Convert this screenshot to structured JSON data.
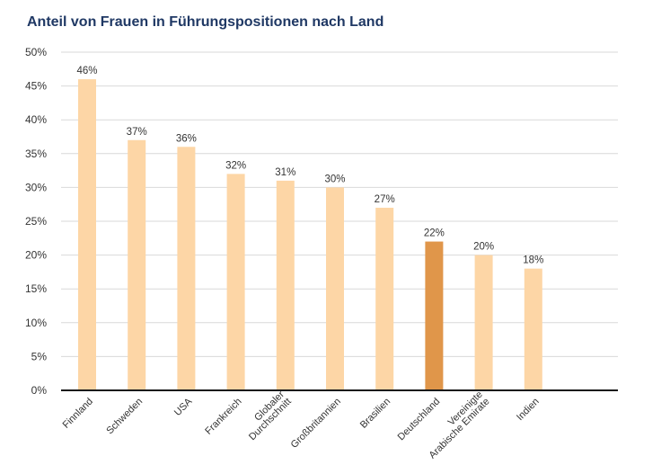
{
  "chart_data": {
    "type": "bar",
    "title": "Anteil von Frauen in Führungspositionen nach Land",
    "categories": [
      [
        "Finnland"
      ],
      [
        "Schweden"
      ],
      [
        "USA"
      ],
      [
        "Frankreich"
      ],
      [
        "Globaler",
        "Durchschnitt"
      ],
      [
        "Großbritannien"
      ],
      [
        "Brasilien"
      ],
      [
        "Deutschland"
      ],
      [
        "Vereinigte",
        "Arabische Emirate"
      ],
      [
        "Indien"
      ]
    ],
    "values": [
      46,
      37,
      36,
      32,
      31,
      30,
      27,
      22,
      20,
      18
    ],
    "data_labels": [
      "46%",
      "37%",
      "36%",
      "32%",
      "31%",
      "30%",
      "27%",
      "22%",
      "20%",
      "18%"
    ],
    "y_ticks": [
      "0%",
      "5%",
      "10%",
      "15%",
      "20%",
      "25%",
      "30%",
      "35%",
      "40%",
      "45%",
      "50%"
    ],
    "ylim": [
      0,
      50
    ],
    "xlabel": "",
    "ylabel": "",
    "grid": true,
    "highlight_index": 7,
    "colors": {
      "bar": "#fdd6a6",
      "highlight": "#e0964a",
      "grid": "#d9d9d9",
      "axis": "#1a1a1a",
      "title": "#1f3864"
    }
  }
}
